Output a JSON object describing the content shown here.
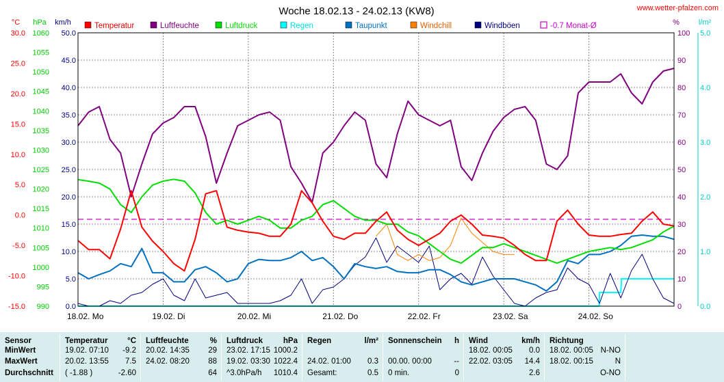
{
  "chart_data": {
    "type": "line",
    "title": "Woche 18.02.13 - 24.02.13 (KW8)",
    "source": "www.wetter-pfalzen.com",
    "x_ticks": [
      "18.02. Mo",
      "19.02. Di",
      "20.02. Mi",
      "21.02. Do",
      "22.02. Fr",
      "23.02. Sa",
      "24.02. So"
    ],
    "x_range_hours": [
      0,
      168
    ],
    "grid": true,
    "axes": {
      "temp": {
        "unit": "°C",
        "color": "#ff0000",
        "ticks": [
          "30.0",
          "25.0",
          "20.0",
          "15.0",
          "10.0",
          "5.0",
          "0.0",
          "-5.0",
          "-10.0",
          "-15.0"
        ],
        "range": [
          -15,
          30
        ]
      },
      "hpa": {
        "unit": "hPa",
        "color": "#00cc00",
        "ticks": [
          "1060",
          "1055",
          "1050",
          "1045",
          "1040",
          "1035",
          "1030",
          "1025",
          "1020",
          "1015",
          "1010",
          "1005",
          "1000",
          "995",
          "990"
        ],
        "range": [
          990,
          1060
        ]
      },
      "kmh": {
        "unit": "km/h",
        "color": "#000080",
        "ticks": [
          "50.0",
          "45.0",
          "40.0",
          "35.0",
          "30.0",
          "25.0",
          "20.0",
          "15.0",
          "10.0",
          "5.0",
          "0.0"
        ],
        "range": [
          0,
          50
        ]
      },
      "pct": {
        "unit": "%",
        "color": "#800080",
        "ticks": [
          "100",
          "90",
          "80",
          "70",
          "60",
          "50",
          "40",
          "30",
          "20",
          "10",
          "0"
        ],
        "range": [
          0,
          100
        ]
      },
      "lm2": {
        "unit": "l/m²",
        "color": "#00cccc",
        "ticks": [
          "5.0",
          "4.0",
          "3.0",
          "2.0",
          "1.0",
          "0.0"
        ],
        "range": [
          0,
          5
        ]
      }
    },
    "legend": [
      {
        "name": "Temperatur",
        "color": "#ff0000",
        "style": "filled"
      },
      {
        "name": "Luftfeuchte",
        "color": "#800080",
        "style": "filled"
      },
      {
        "name": "Luftdruck",
        "color": "#00dd00",
        "style": "filled"
      },
      {
        "name": "Regen",
        "color": "#00ffff",
        "style": "filled"
      },
      {
        "name": "Taupunkt",
        "color": "#0070c0",
        "style": "filled"
      },
      {
        "name": "Windchill",
        "color": "#ff8000",
        "style": "filled"
      },
      {
        "name": "Windböen",
        "color": "#000080",
        "style": "filled"
      },
      {
        "name": "-0.7 Monat-Ø",
        "color": "#cc00cc",
        "style": "outline"
      }
    ],
    "monthly_avg_temp": -0.7,
    "series": [
      {
        "name": "Temperatur",
        "axis": "temp",
        "color": "#ff0000",
        "x": [
          0,
          3,
          6,
          9,
          12,
          15,
          18,
          21,
          24,
          27,
          30,
          33,
          36,
          39,
          42,
          45,
          48,
          51,
          54,
          57,
          60,
          63,
          66,
          69,
          72,
          75,
          78,
          81,
          84,
          87,
          90,
          93,
          96,
          99,
          102,
          105,
          108,
          111,
          114,
          117,
          120,
          123,
          126,
          129,
          132,
          135,
          138,
          141,
          144,
          147,
          150,
          153,
          156,
          159,
          162,
          165,
          168
        ],
        "y": [
          -4.2,
          -5.7,
          -5.7,
          -7.2,
          -2.3,
          4.0,
          -2.0,
          -4.3,
          -6.0,
          -8.0,
          -9.2,
          -4.0,
          3.5,
          4.0,
          -2.0,
          -2.5,
          -2.8,
          -3.0,
          -3.5,
          -3.5,
          -1.5,
          4.0,
          2.0,
          -1.0,
          -3.5,
          -4.0,
          -3.0,
          -3.0,
          -1.0,
          0.5,
          -2.5,
          -4.0,
          -5.0,
          -4.0,
          -3.0,
          -1.0,
          0.0,
          -1.5,
          -3.3,
          -3.5,
          -3.8,
          -5.0,
          -6.5,
          -7.5,
          -7.5,
          -1.0,
          0.8,
          -1.5,
          -3.3,
          -3.5,
          -3.5,
          -3.2,
          -3.0,
          -1.0,
          0.5,
          -1.5,
          -1.8
        ]
      },
      {
        "name": "Luftfeuchte",
        "axis": "pct",
        "color": "#800080",
        "x": [
          0,
          3,
          6,
          9,
          12,
          15,
          18,
          21,
          24,
          27,
          30,
          33,
          36,
          39,
          42,
          45,
          48,
          51,
          54,
          57,
          60,
          63,
          66,
          69,
          72,
          75,
          78,
          81,
          84,
          87,
          90,
          93,
          96,
          99,
          102,
          105,
          108,
          111,
          114,
          117,
          120,
          123,
          126,
          129,
          132,
          135,
          138,
          141,
          144,
          147,
          150,
          153,
          156,
          159,
          162,
          165,
          168
        ],
        "y": [
          66,
          71,
          73,
          61,
          56,
          40,
          52,
          63,
          67,
          69,
          73,
          73,
          62,
          45,
          56,
          66,
          68,
          70,
          71,
          68,
          51,
          45,
          38,
          56,
          60,
          66,
          71,
          68,
          52,
          47,
          63,
          75,
          70,
          68,
          66,
          68,
          51,
          46,
          56,
          64,
          69,
          72,
          73,
          68,
          52,
          50,
          55,
          78,
          82,
          82,
          82,
          85,
          78,
          74,
          82,
          86,
          87
        ]
      },
      {
        "name": "Luftdruck",
        "axis": "hpa",
        "color": "#00dd00",
        "x": [
          0,
          3,
          6,
          9,
          12,
          15,
          18,
          21,
          24,
          27,
          30,
          33,
          36,
          39,
          42,
          45,
          48,
          51,
          54,
          57,
          60,
          63,
          66,
          69,
          72,
          75,
          78,
          81,
          84,
          87,
          90,
          93,
          96,
          99,
          102,
          105,
          108,
          111,
          114,
          117,
          120,
          123,
          126,
          129,
          132,
          135,
          138,
          141,
          144,
          147,
          150,
          153,
          156,
          159,
          162,
          165,
          168
        ],
        "y": [
          1022.4,
          1022.0,
          1021.5,
          1020.0,
          1016.0,
          1014.0,
          1018.0,
          1021.0,
          1022.0,
          1022.5,
          1022.0,
          1019.0,
          1014.0,
          1011.0,
          1012.0,
          1011.0,
          1012.0,
          1013.0,
          1012.0,
          1010.0,
          1010.0,
          1012.0,
          1013.0,
          1016.0,
          1017.0,
          1015.0,
          1013.0,
          1012.0,
          1012.0,
          1011.0,
          1011.0,
          1009.0,
          1008.0,
          1006.0,
          1004.0,
          1002.0,
          1001.0,
          1003.0,
          1005.0,
          1005.0,
          1006.0,
          1005.0,
          1004.0,
          1003.0,
          1002.0,
          1001.0,
          1002.0,
          1003.0,
          1004.0,
          1004.5,
          1005.0,
          1004.5,
          1005.0,
          1006.0,
          1007.0,
          1009.0,
          1010.5
        ]
      },
      {
        "name": "Taupunkt",
        "axis": "temp",
        "color": "#0070c0",
        "x": [
          0,
          3,
          6,
          9,
          12,
          15,
          18,
          21,
          24,
          27,
          30,
          33,
          36,
          39,
          42,
          45,
          48,
          51,
          54,
          57,
          60,
          63,
          66,
          69,
          72,
          75,
          78,
          81,
          84,
          87,
          90,
          93,
          96,
          99,
          102,
          105,
          108,
          111,
          114,
          117,
          120,
          123,
          126,
          129,
          132,
          135,
          138,
          141,
          144,
          147,
          150,
          153,
          156,
          159,
          162,
          165,
          168
        ],
        "y": [
          -9.5,
          -10.5,
          -9.8,
          -9.2,
          -8.0,
          -8.5,
          -5.5,
          -9.5,
          -9.5,
          -11.0,
          -11.0,
          -9.0,
          -8.5,
          -9.5,
          -11.0,
          -10.5,
          -8.0,
          -7.3,
          -7.5,
          -7.5,
          -7.0,
          -6.0,
          -7.5,
          -7.0,
          -8.5,
          -10.5,
          -8.0,
          -8.5,
          -8.8,
          -8.5,
          -9.3,
          -9.5,
          -9.5,
          -9.0,
          -9.0,
          -9.8,
          -11.0,
          -11.5,
          -11.0,
          -10.5,
          -10.5,
          -10.5,
          -11.0,
          -11.5,
          -12.5,
          -11.0,
          -7.5,
          -8.0,
          -6.5,
          -6.5,
          -6.0,
          -5.0,
          -3.5,
          -3.3,
          -3.5,
          -3.5,
          -4.0
        ]
      },
      {
        "name": "Windchill",
        "axis": "temp",
        "color": "#ff8000",
        "x": [
          84,
          87,
          90,
          93,
          96,
          99,
          102,
          105,
          108,
          111,
          114,
          117,
          120,
          123
        ],
        "y": [
          -3.5,
          -1.5,
          -6.5,
          -7.5,
          -6.5,
          -7.5,
          -7.0,
          -5.0,
          -0.5,
          -3.0,
          -4.5,
          -6.0,
          -6.5,
          -6.5
        ]
      },
      {
        "name": "Windböen",
        "axis": "kmh",
        "color": "#000080",
        "x": [
          0,
          3,
          6,
          9,
          12,
          15,
          18,
          21,
          24,
          27,
          30,
          33,
          36,
          39,
          42,
          45,
          48,
          51,
          54,
          57,
          60,
          63,
          66,
          69,
          72,
          75,
          78,
          81,
          84,
          87,
          90,
          93,
          96,
          99,
          102,
          105,
          108,
          111,
          114,
          117,
          120,
          123,
          126,
          129,
          132,
          135,
          138,
          141,
          144,
          147,
          150,
          153,
          156,
          159,
          162,
          165,
          168
        ],
        "y": [
          0.5,
          0.0,
          0.0,
          1.0,
          0.5,
          2.0,
          2.5,
          4.0,
          5.0,
          2.0,
          1.0,
          5.0,
          1.5,
          2.0,
          2.5,
          0.5,
          0.5,
          0.5,
          0.5,
          1.0,
          2.0,
          5.0,
          0.5,
          3.0,
          3.5,
          5.0,
          7.5,
          9.0,
          12.5,
          8.0,
          11.0,
          9.5,
          8.0,
          11.0,
          3.0,
          5.0,
          6.0,
          4.0,
          9.0,
          5.5,
          3.0,
          0.5,
          0.0,
          1.5,
          2.5,
          3.0,
          7.0,
          5.0,
          4.0,
          0.5,
          6.0,
          1.5,
          6.5,
          9.5,
          5.0,
          1.5,
          0.5
        ]
      },
      {
        "name": "Regen",
        "axis": "lm2",
        "color": "#00ffff",
        "x": [
          0,
          146.9,
          147,
          153,
          153.2,
          168
        ],
        "y": [
          0,
          0,
          0.25,
          0.25,
          0.5,
          0.5
        ]
      }
    ]
  },
  "table": {
    "headers": {
      "sensor": "Sensor",
      "temp": {
        "label": "Temperatur",
        "unit": "°C"
      },
      "hum": {
        "label": "Luftfeuchte",
        "unit": "%"
      },
      "pres": {
        "label": "Luftdruck",
        "unit": "hPa"
      },
      "rain": {
        "label": "Regen",
        "unit": "l/m²"
      },
      "sun": {
        "label": "Sonnenschein",
        "unit": "h"
      },
      "wind": {
        "label": "Wind",
        "unit": "km/h"
      },
      "dir": {
        "label": "Richtung"
      }
    },
    "rows": {
      "min": {
        "label": "MinWert",
        "temp_time": "19.02.  07:10",
        "temp_val": "-9.2",
        "hum_time": "20.02.  14:35",
        "hum_val": "29",
        "pres_time": "23.02.  17:15",
        "pres_val": "1000.2",
        "rain_time": "",
        "rain_val": "",
        "sun_time": "",
        "sun_val": "",
        "wind_time": "18.02.  00:05",
        "wind_val": "0.0",
        "dir_time": "18.02.  00:05",
        "dir_val": "N-NO"
      },
      "max": {
        "label": "MaxWert",
        "temp_time": "20.02.  13:55",
        "temp_val": "7.5",
        "hum_time": "24.02.  08:20",
        "hum_val": "88",
        "pres_time": "19.02.  03:30",
        "pres_val": "1022.4",
        "rain_time": "24.02.  01:00",
        "rain_val": "0.3",
        "sun_time": "00.00.  00:00",
        "sun_val": "--",
        "wind_time": "22.02.  03:05",
        "wind_val": "14.4",
        "dir_time": "18.02.  00:15",
        "dir_val": "N"
      },
      "avg": {
        "label": "Durchschnitt",
        "temp_time": "( -1.88 )",
        "temp_val": "-2.60",
        "hum_time": "",
        "hum_val": "64",
        "pres_time": "^3.0hPa/h",
        "pres_val": "1010.4",
        "rain_time": "Gesamt:",
        "rain_val": "0.5",
        "sun_time": "0 min.",
        "sun_val": "0",
        "wind_time": "",
        "wind_val": "2.6",
        "dir_time": "",
        "dir_val": "O-NO"
      }
    }
  }
}
